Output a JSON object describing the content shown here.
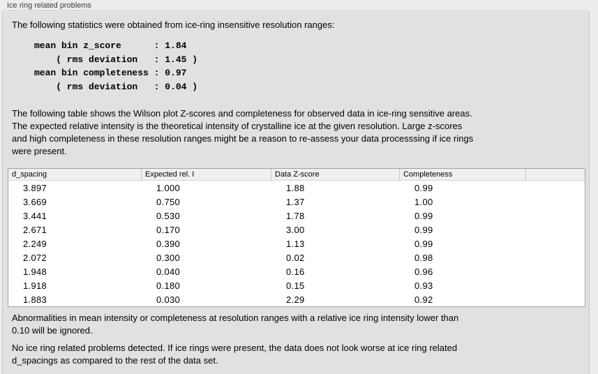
{
  "panel": {
    "title": "Ice ring related problems"
  },
  "intro": {
    "text": "The following statistics were obtained from ice-ring insensitive resolution ranges:"
  },
  "stats": {
    "text": "mean bin z_score      : 1.84\n    ( rms deviation   : 1.45 )\nmean bin completeness : 0.97\n    ( rms deviation   : 0.04 )"
  },
  "description": {
    "text": "The following table shows the Wilson plot Z-scores and completeness for observed data in ice-ring sensitive areas.\nThe expected relative intensity is the theoretical intensity of crystalline ice at the given resolution. Large z-scores\nand high completeness in these resolution ranges might be a reason to re-assess your data processsing if ice rings\nwere present."
  },
  "table": {
    "columns": [
      "d_spacing",
      "Expected rel. I",
      "Data Z-score",
      "Completeness",
      ""
    ],
    "rows": [
      [
        "3.897",
        "1.000",
        "1.88",
        "0.99"
      ],
      [
        "3.669",
        "0.750",
        "1.37",
        "1.00"
      ],
      [
        "3.441",
        "0.530",
        "1.78",
        "0.99"
      ],
      [
        "2.671",
        "0.170",
        "3.00",
        "0.99"
      ],
      [
        "2.249",
        "0.390",
        "1.13",
        "0.99"
      ],
      [
        "2.072",
        "0.300",
        "0.02",
        "0.98"
      ],
      [
        "1.948",
        "0.040",
        "0.16",
        "0.96"
      ],
      [
        "1.918",
        "0.180",
        "0.15",
        "0.93"
      ],
      [
        "1.883",
        "0.030",
        "2.29",
        "0.92"
      ]
    ]
  },
  "footnote": {
    "text": "Abnormalities in mean intensity or completeness at resolution ranges with a relative ice ring intensity lower than\n0.10 will be ignored."
  },
  "conclusion": {
    "text": "No ice ring related problems detected. If ice rings were present, the data does not look worse at ice ring related\nd_spacings as compared to the rest of the data set."
  }
}
